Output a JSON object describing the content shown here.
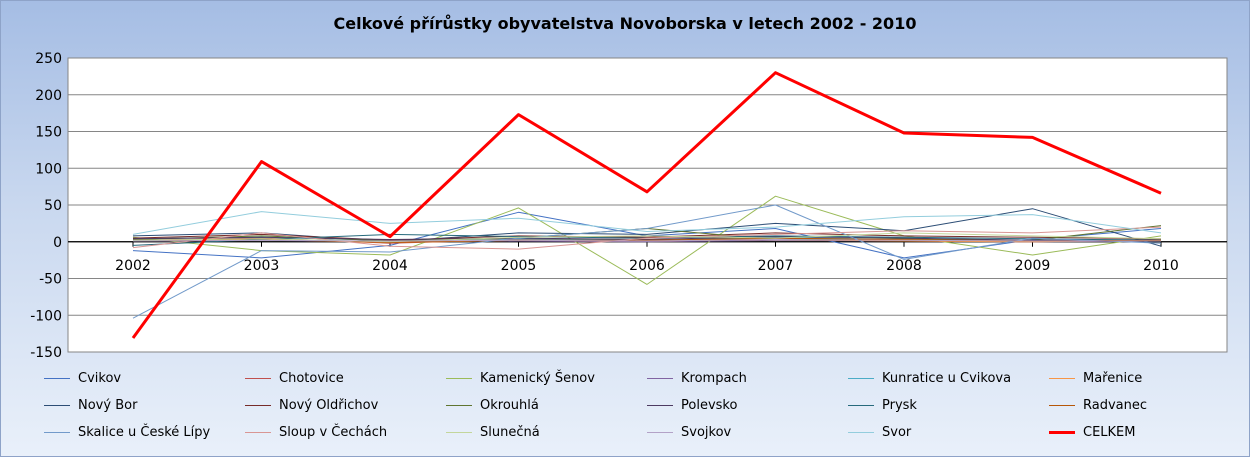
{
  "chart_data": {
    "type": "line",
    "title": "Celkové přírůstky obyvatelstva Novoborska v letech 2002 - 2010",
    "xlabel": "",
    "ylabel": "",
    "categories": [
      "2002",
      "2003",
      "2004",
      "2005",
      "2006",
      "2007",
      "2008",
      "2009",
      "2010"
    ],
    "ylim": [
      -150,
      250
    ],
    "yticks": [
      -150,
      -100,
      -50,
      0,
      50,
      100,
      150,
      200,
      250
    ],
    "grid": true,
    "legend_position": "bottom",
    "series": [
      {
        "name": "Cvikov",
        "color": "#4472c4",
        "values": [
          -12,
          -22,
          -5,
          40,
          8,
          18,
          -22,
          3,
          18
        ]
      },
      {
        "name": "Chotovice",
        "color": "#c0504d",
        "values": [
          2,
          5,
          -2,
          3,
          1,
          4,
          2,
          0,
          2
        ]
      },
      {
        "name": "Kamenický Šenov",
        "color": "#9bbb59",
        "values": [
          6,
          -12,
          -18,
          46,
          -58,
          62,
          8,
          -18,
          8
        ]
      },
      {
        "name": "Krompach",
        "color": "#8064a2",
        "values": [
          1,
          2,
          0,
          1,
          0,
          2,
          1,
          0,
          1
        ]
      },
      {
        "name": "Kunratice u Cvikova",
        "color": "#4bacc6",
        "values": [
          4,
          6,
          2,
          4,
          2,
          6,
          3,
          1,
          3
        ]
      },
      {
        "name": "Mařenice",
        "color": "#f79646",
        "values": [
          2,
          3,
          -1,
          2,
          1,
          3,
          1,
          0,
          2
        ]
      },
      {
        "name": "Nový Bor",
        "color": "#2c4d75",
        "values": [
          8,
          12,
          0,
          12,
          10,
          25,
          15,
          45,
          -6
        ]
      },
      {
        "name": "Nový Oldřichov",
        "color": "#772c2a",
        "values": [
          5,
          10,
          2,
          8,
          6,
          12,
          8,
          6,
          4
        ]
      },
      {
        "name": "Okrouhlá",
        "color": "#5f7530",
        "values": [
          3,
          8,
          1,
          5,
          18,
          3,
          4,
          2,
          22
        ]
      },
      {
        "name": "Polevsko",
        "color": "#4d3b62",
        "values": [
          4,
          6,
          3,
          5,
          3,
          7,
          5,
          2,
          3
        ]
      },
      {
        "name": "Prysk",
        "color": "#276a7c",
        "values": [
          -5,
          3,
          10,
          7,
          5,
          8,
          6,
          4,
          2
        ]
      },
      {
        "name": "Radvanec",
        "color": "#b65708",
        "values": [
          1,
          4,
          -1,
          2,
          2,
          5,
          3,
          1,
          2
        ]
      },
      {
        "name": "Skalice u České Lípy",
        "color": "#729aca",
        "values": [
          -104,
          -12,
          -14,
          5,
          18,
          50,
          -24,
          5,
          -2
        ]
      },
      {
        "name": "Sloup v Čechách",
        "color": "#d99694",
        "values": [
          -8,
          12,
          -6,
          -10,
          5,
          10,
          15,
          12,
          20
        ]
      },
      {
        "name": "Slunečná",
        "color": "#c3d69b",
        "values": [
          2,
          4,
          0,
          6,
          8,
          5,
          12,
          8,
          4
        ]
      },
      {
        "name": "Svojkov",
        "color": "#b3a2c7",
        "values": [
          1,
          2,
          1,
          2,
          1,
          3,
          2,
          1,
          1
        ]
      },
      {
        "name": "Svor",
        "color": "#93cddd",
        "values": [
          10,
          41,
          25,
          32,
          14,
          20,
          34,
          37,
          12
        ]
      },
      {
        "name": "CELKEM",
        "color": "#ff0000",
        "values": [
          -131,
          109,
          7,
          173,
          68,
          230,
          148,
          142,
          66
        ]
      }
    ]
  }
}
